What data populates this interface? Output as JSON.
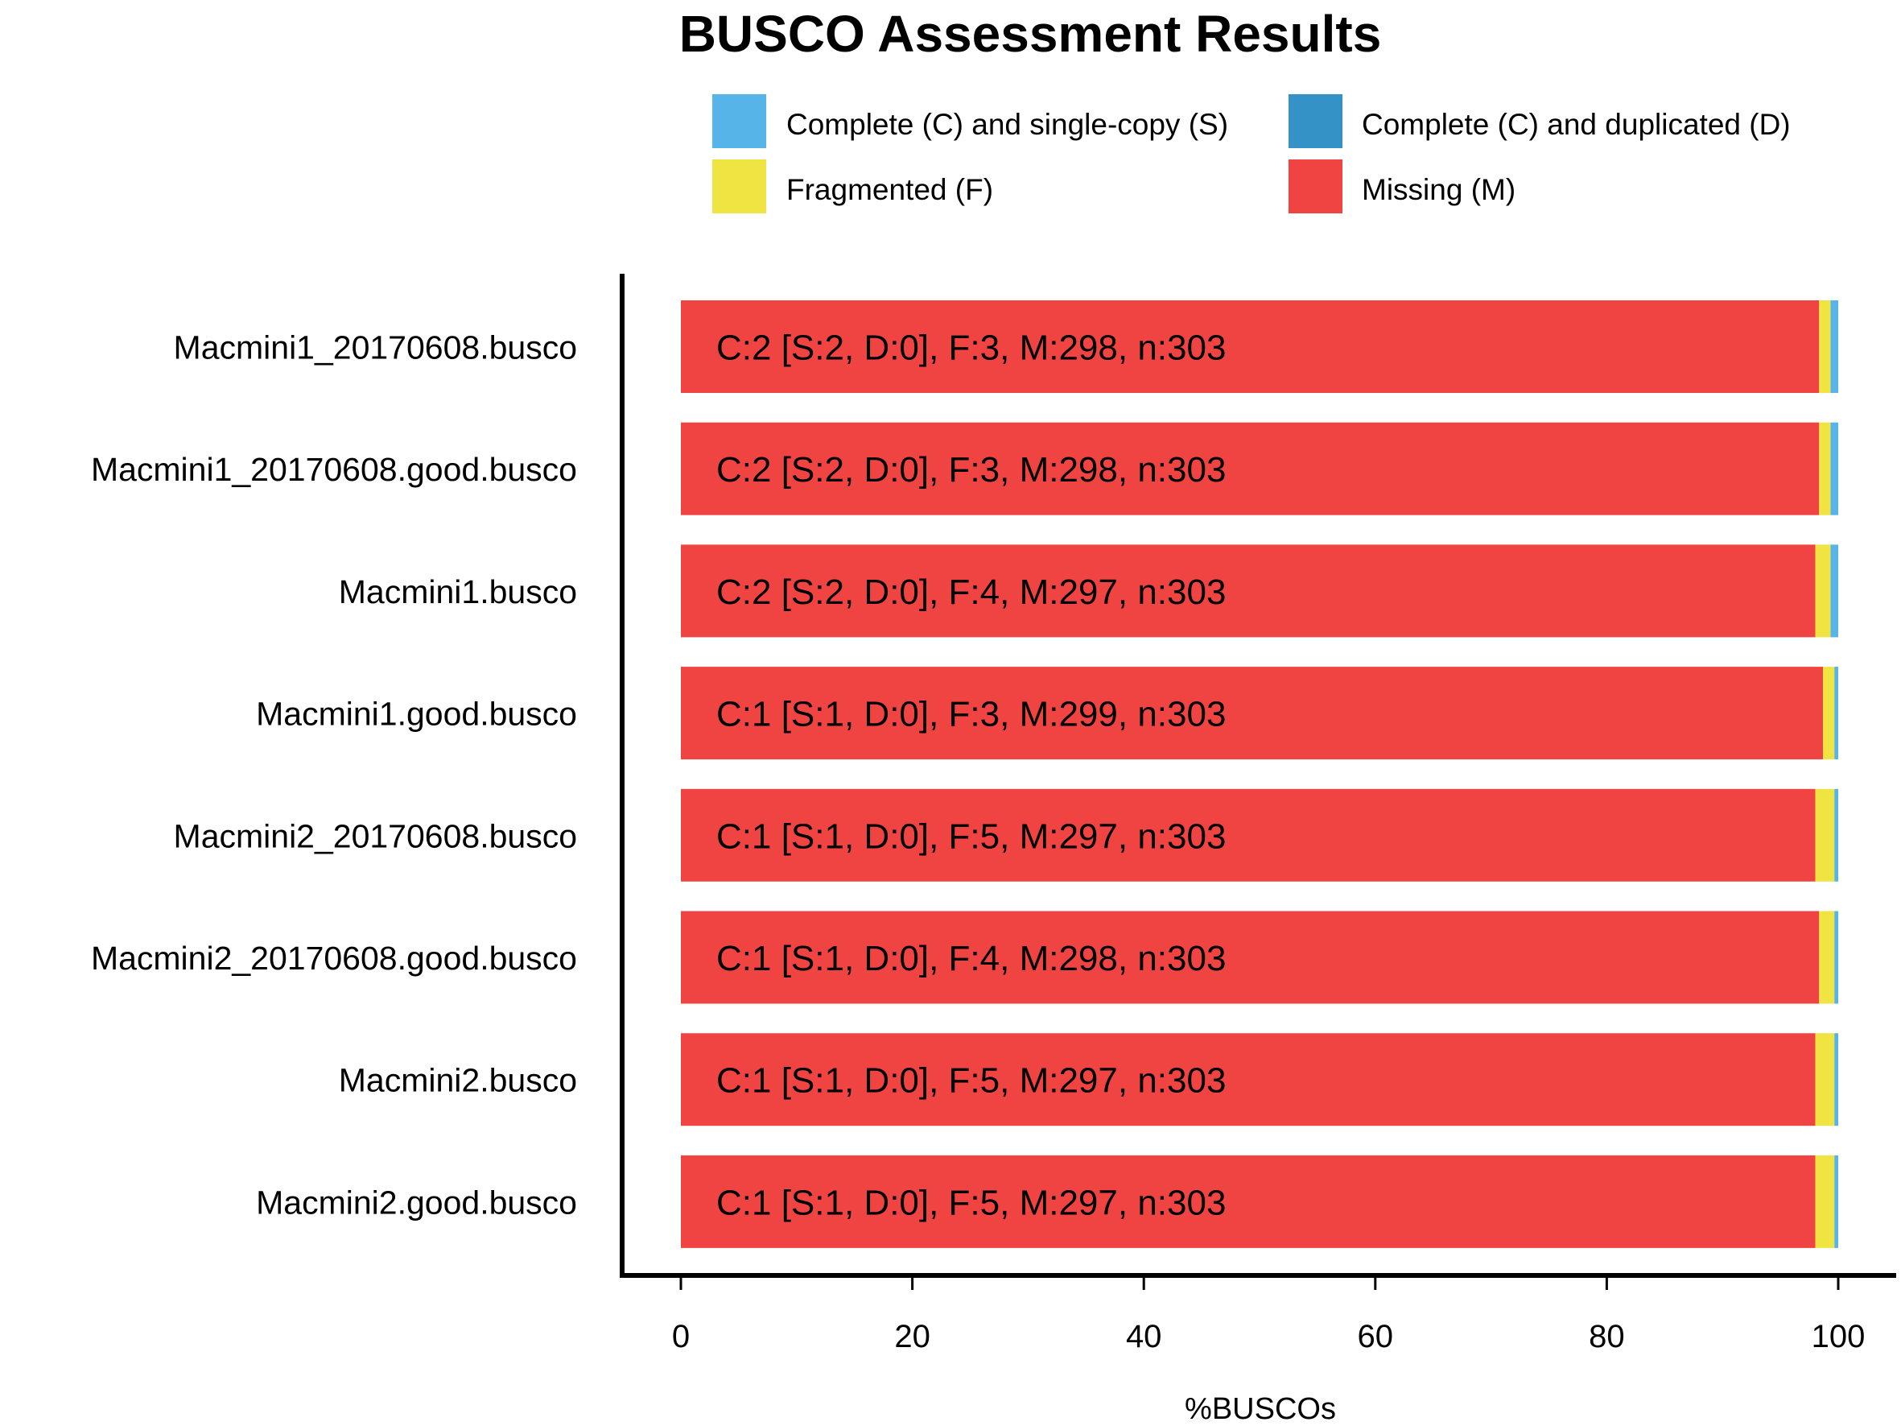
{
  "chart_data": {
    "type": "bar",
    "orientation": "horizontal",
    "stacked": true,
    "title": "BUSCO Assessment Results",
    "xlabel": "%BUSCOs",
    "ylabel": "",
    "xlim": [
      0,
      100
    ],
    "xticks": [
      "0",
      "20",
      "40",
      "60",
      "80",
      "100"
    ],
    "grid": false,
    "legend_position": "top",
    "categories": [
      "Macmini1_20170608.busco",
      "Macmini1_20170608.good.busco",
      "Macmini1.busco",
      "Macmini1.good.busco",
      "Macmini2_20170608.busco",
      "Macmini2_20170608.good.busco",
      "Macmini2.busco",
      "Macmini2.good.busco"
    ],
    "series": [
      {
        "name": "Complete (C) and single-copy (S)",
        "color": "#56B4E9",
        "values": [
          0.66,
          0.66,
          0.66,
          0.33,
          0.33,
          0.33,
          0.33,
          0.33
        ]
      },
      {
        "name": "Complete (C) and duplicated (D)",
        "color": "#3492C7",
        "values": [
          0,
          0,
          0,
          0,
          0,
          0,
          0,
          0
        ]
      },
      {
        "name": "Fragmented (F)",
        "color": "#F0E442",
        "values": [
          0.99,
          0.99,
          1.32,
          0.99,
          1.65,
          1.32,
          1.65,
          1.65
        ]
      },
      {
        "name": "Missing (M)",
        "color": "#F04442",
        "values": [
          98.35,
          98.35,
          98.02,
          98.68,
          98.02,
          98.35,
          98.02,
          98.02
        ]
      }
    ],
    "bar_labels": [
      "C:2 [S:2, D:0], F:3, M:298, n:303",
      "C:2 [S:2, D:0], F:3, M:298, n:303",
      "C:2 [S:2, D:0], F:4, M:297, n:303",
      "C:1 [S:1, D:0], F:3, M:299, n:303",
      "C:1 [S:1, D:0], F:5, M:297, n:303",
      "C:1 [S:1, D:0], F:4, M:298, n:303",
      "C:1 [S:1, D:0], F:5, M:297, n:303",
      "C:1 [S:1, D:0], F:5, M:297, n:303"
    ]
  }
}
